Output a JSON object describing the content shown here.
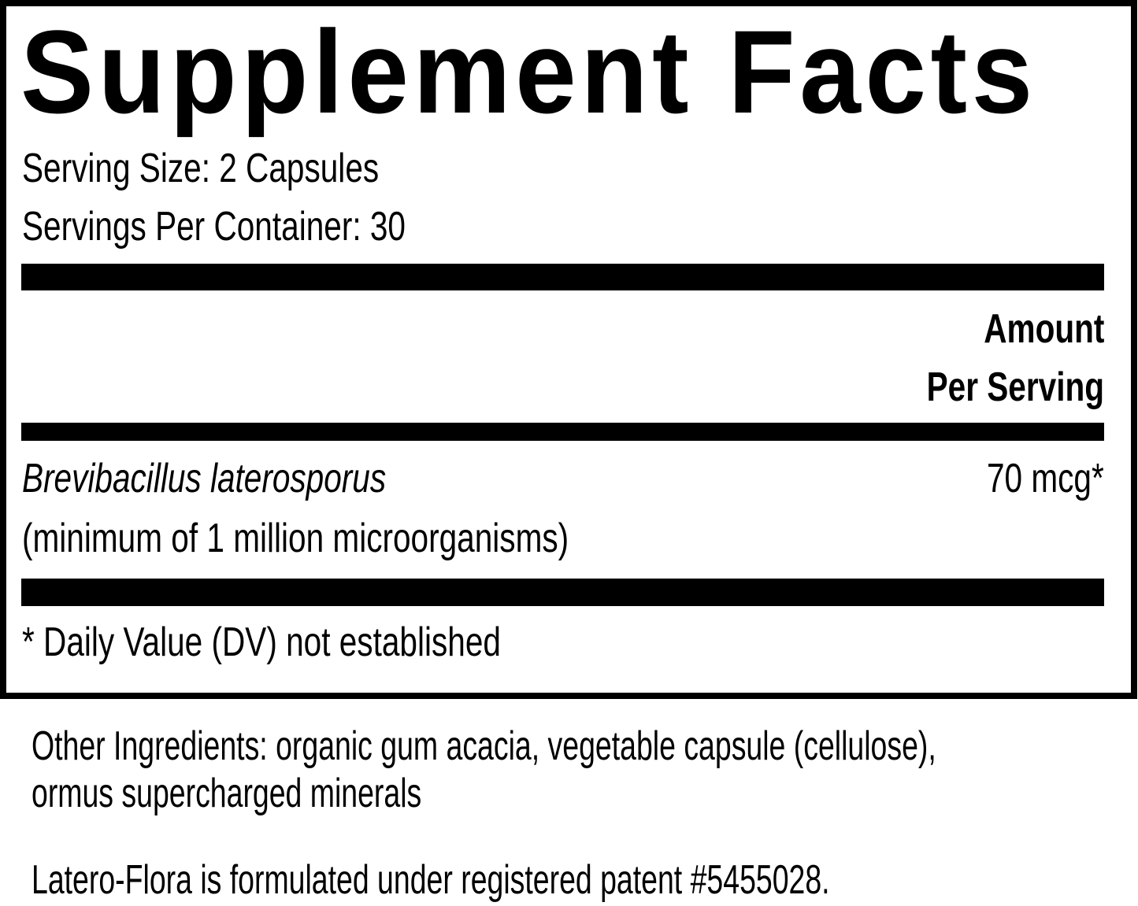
{
  "title": "Supplement Facts",
  "serving_size": "Serving Size: 2 Capsules",
  "servings_per_container": "Servings Per Container: 30",
  "amount_header": {
    "line1": "Amount",
    "line2": "Per Serving"
  },
  "ingredients": [
    {
      "name": "Brevibacillus laterosporus",
      "note": "(minimum of 1 million microorganisms)",
      "amount": "70 mcg*"
    }
  ],
  "footnote": "* Daily Value (DV) not established",
  "other_ingredients": {
    "line1": "Other Ingredients: organic gum acacia, vegetable capsule (cellulose),",
    "line2": "ormus supercharged minerals"
  },
  "patent_note": "Latero-Flora is formulated under registered patent #5455028."
}
